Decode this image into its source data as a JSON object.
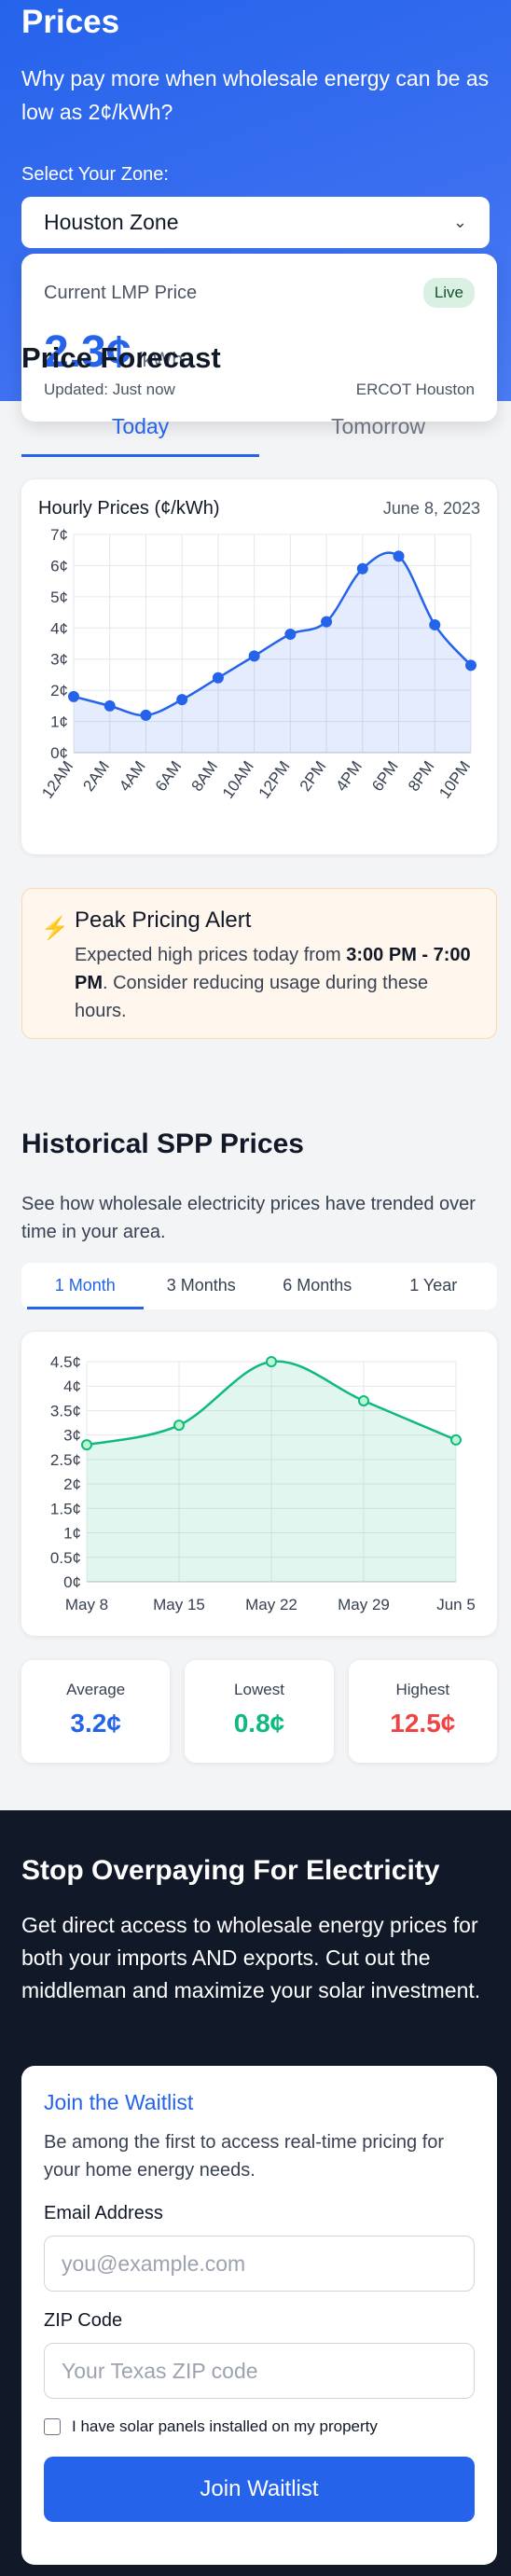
{
  "hero": {
    "title": "Prices",
    "subtitle": "Why pay more when wholesale energy can be as low as 2¢/kWh?",
    "zone_label": "Select Your Zone:",
    "zone_value": "Houston Zone"
  },
  "lmp": {
    "title": "Current LMP Price",
    "badge": "Live",
    "price": "2.3¢",
    "unit": "/kWh",
    "updated": "Updated: Just now",
    "source": "ERCOT Houston"
  },
  "forecast": {
    "title": "Price Forecast",
    "tabs": [
      "Today",
      "Tomorrow"
    ],
    "chart_title": "Hourly Prices (¢/kWh)",
    "chart_date": "June 8, 2023"
  },
  "alert": {
    "title": "Peak Pricing Alert",
    "text_before": "Expected high prices today from ",
    "time_range": "3:00 PM - 7:00 PM",
    "text_after": ". Consider reducing usage during these hours."
  },
  "historical": {
    "title": "Historical SPP Prices",
    "description": "See how wholesale electricity prices have trended over time in your area.",
    "tabs": [
      "1 Month",
      "3 Months",
      "6 Months",
      "1 Year"
    ],
    "stats": [
      {
        "label": "Average",
        "value": "3.2¢",
        "color": "#2563eb"
      },
      {
        "label": "Lowest",
        "value": "0.8¢",
        "color": "#10b981"
      },
      {
        "label": "Highest",
        "value": "12.5¢",
        "color": "#ef4444"
      }
    ]
  },
  "cta": {
    "title": "Stop Overpaying For Electricity",
    "lead": "Get direct access to wholesale energy prices for both your imports AND exports. Cut out the middleman and maximize your solar investment.",
    "form_title": "Join the Waitlist",
    "form_sub": "Be among the first to access real-time pricing for your home energy needs.",
    "email_label": "Email Address",
    "email_placeholder": "you@example.com",
    "zip_label": "ZIP Code",
    "zip_placeholder": "Your Texas ZIP code",
    "solar_label": "I have solar panels installed on my property",
    "button": "Join Waitlist"
  },
  "colors": {
    "accent": "#2563eb",
    "green": "#10b981",
    "red": "#ef4444",
    "dark": "#111827"
  },
  "chart_data": [
    {
      "type": "area",
      "title": "Hourly Prices (¢/kWh)",
      "x": [
        "12AM",
        "2AM",
        "4AM",
        "6AM",
        "8AM",
        "10AM",
        "12PM",
        "2PM",
        "4PM",
        "6PM",
        "8PM",
        "10PM"
      ],
      "values": [
        1.8,
        1.5,
        1.2,
        1.7,
        2.4,
        3.1,
        3.8,
        4.2,
        5.9,
        6.3,
        4.1,
        2.8
      ],
      "y_ticks": [
        "0¢",
        "1¢",
        "2¢",
        "3¢",
        "4¢",
        "5¢",
        "6¢",
        "7¢"
      ],
      "ylim": [
        0,
        7
      ],
      "grid": true,
      "color": "#2563eb"
    },
    {
      "type": "area",
      "x": [
        "May 8",
        "May 15",
        "May 22",
        "May 29",
        "Jun 5"
      ],
      "values": [
        2.8,
        3.2,
        4.5,
        3.7,
        2.9
      ],
      "y_ticks": [
        "0¢",
        "0.5¢",
        "1¢",
        "1.5¢",
        "2¢",
        "2.5¢",
        "3¢",
        "3.5¢",
        "4¢",
        "4.5¢"
      ],
      "ylim": [
        0,
        4.5
      ],
      "grid": true,
      "color": "#10b981"
    }
  ]
}
